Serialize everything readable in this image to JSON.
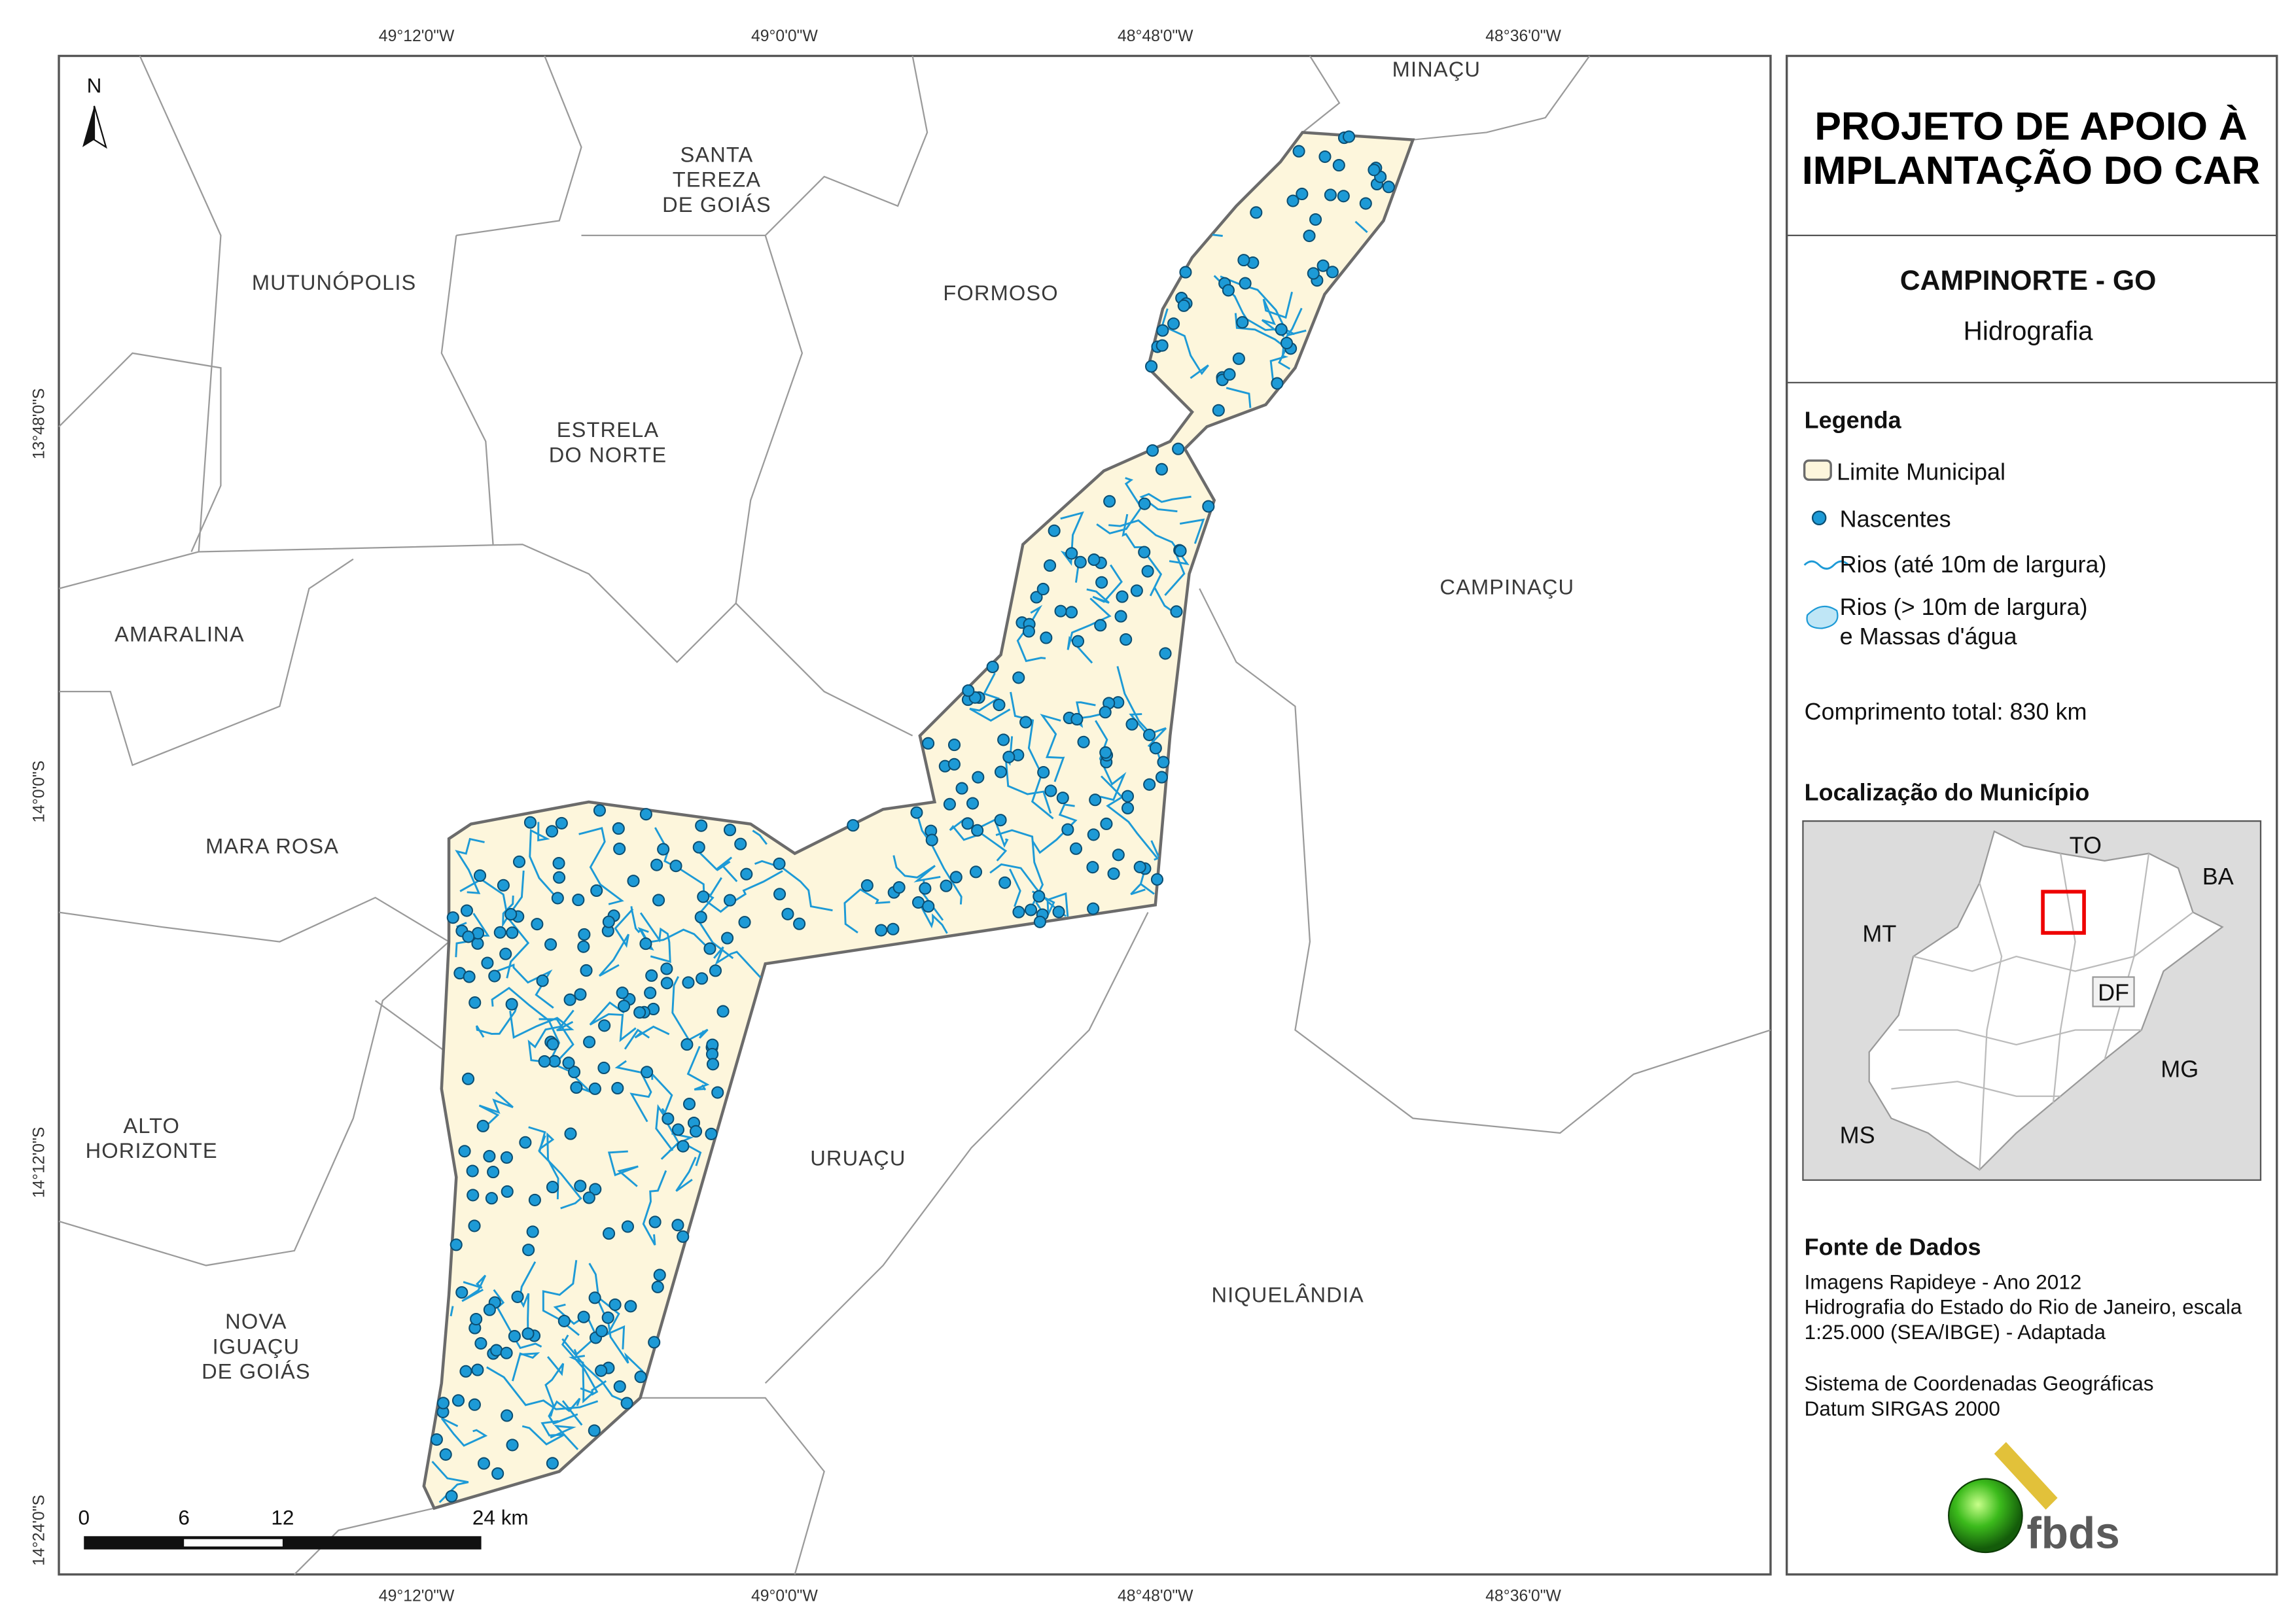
{
  "map": {
    "lon_labels": [
      "49°12'0\"W",
      "49°0'0\"W",
      "48°48'0\"W",
      "48°36'0\"W"
    ],
    "lat_labels": [
      "13°48'0\"S",
      "14°0'0\"S",
      "14°12'0\"S",
      "14°24'0\"S"
    ],
    "north": "N",
    "places": [
      [
        "MINAÇU"
      ],
      [
        "SANTA",
        "TEREZA",
        "DE GOIÁS"
      ],
      [
        "MUTUNÓPOLIS"
      ],
      [
        "FORMOSO"
      ],
      [
        "ESTRELA",
        "DO NORTE"
      ],
      [
        "AMARALINA"
      ],
      [
        "CAMPINAÇU"
      ],
      [
        "MARA ROSA"
      ],
      [
        "ALTO",
        "HORIZONTE"
      ],
      [
        "URUAÇU"
      ],
      [
        "NIQUELÂNDIA"
      ],
      [
        "NOVA",
        "IGUAÇU",
        "DE GOIÁS"
      ]
    ],
    "scale_bar": [
      "0",
      "6",
      "12",
      "24 km"
    ]
  },
  "panel": {
    "title_lines": [
      "PROJETO DE APOIO À",
      "IMPLANTAÇÃO DO CAR"
    ],
    "municipality": "CAMPINORTE - GO",
    "theme": "Hidrografia",
    "legend": {
      "title": "Legenda",
      "items": [
        "Limite Municipal",
        "Nascentes",
        "Rios (até 10m de largura)",
        [
          "Rios (> 10m de largura)",
          "e Massas d'água"
        ]
      ]
    },
    "total_length": "Comprimento total:  830 km",
    "location": {
      "title": "Localização do Município",
      "labels": [
        "TO",
        "BA",
        "MT",
        "DF",
        "MG",
        "MS"
      ]
    },
    "sources": {
      "title": "Fonte de Dados",
      "lines": [
        "Imagens Rapideye - Ano 2012",
        "Hidrografia do Estado do Rio de Janeiro, escala",
        "1:25.000 (SEA/IBGE) - Adaptada",
        "Sistema de Coordenadas Geográficas",
        "Datum SIRGAS 2000"
      ]
    },
    "logo": "fbds"
  }
}
